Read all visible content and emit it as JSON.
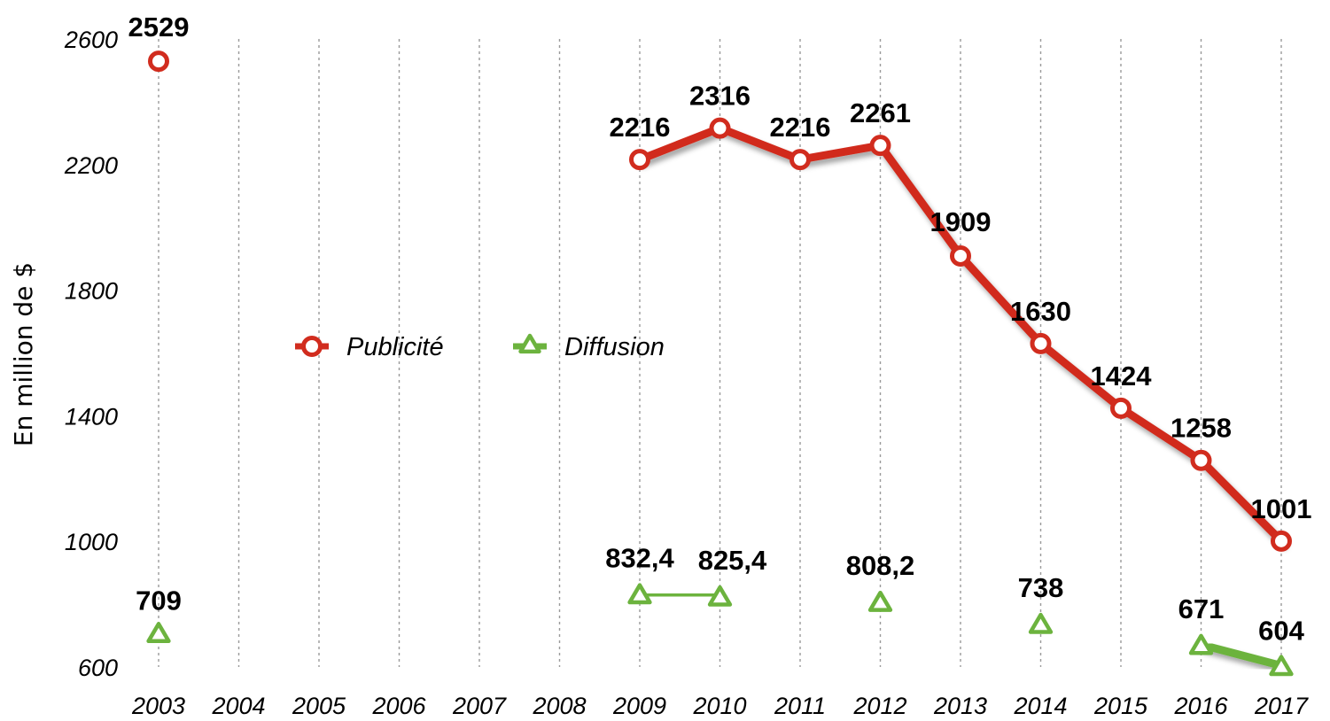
{
  "chart_data": {
    "type": "line",
    "ylabel": "En million de $",
    "xlabel": "",
    "categories": [
      "2003",
      "2004",
      "2005",
      "2006",
      "2007",
      "2008",
      "2009",
      "2010",
      "2011",
      "2012",
      "2013",
      "2014",
      "2015",
      "2016",
      "2017"
    ],
    "ylim": [
      600,
      2600
    ],
    "yticks": [
      600,
      1000,
      1400,
      1800,
      2200,
      2600
    ],
    "ytick_labels": [
      "600",
      "1000",
      "1400",
      "1800",
      "2200",
      "2600"
    ],
    "grid": "vertical",
    "legend_position": "center-left",
    "series": [
      {
        "name": "Publicité",
        "color": "#d12c1e",
        "marker": "circle",
        "values": [
          2529,
          null,
          null,
          null,
          null,
          null,
          2216,
          2316,
          2216,
          2261,
          1909,
          1630,
          1424,
          1258,
          1001
        ],
        "labels": [
          "2529",
          null,
          null,
          null,
          null,
          null,
          "2216",
          "2316",
          "2216",
          "2261",
          "1909",
          "1630",
          "1424",
          "1258",
          "1001"
        ]
      },
      {
        "name": "Diffusion",
        "color": "#6cb33e",
        "marker": "triangle",
        "values": [
          709,
          null,
          null,
          null,
          null,
          null,
          832.4,
          825.4,
          null,
          808.2,
          null,
          738,
          null,
          671,
          604
        ],
        "labels": [
          "709",
          null,
          null,
          null,
          null,
          null,
          "832,4",
          "825,4",
          null,
          "808,2",
          null,
          "738",
          null,
          "671",
          "604"
        ]
      }
    ]
  }
}
